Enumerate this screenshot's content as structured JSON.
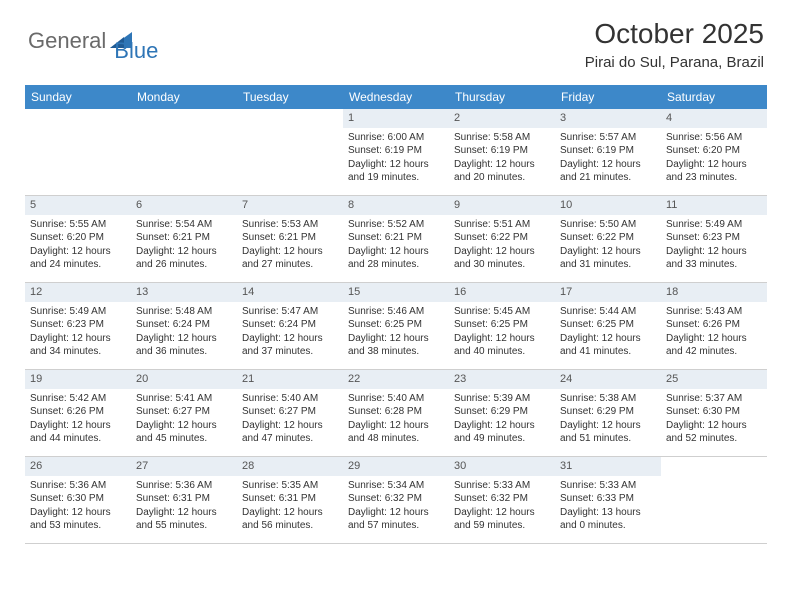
{
  "brand": {
    "part1": "General",
    "part2": "Blue"
  },
  "title": "October 2025",
  "location": "Pirai do Sul, Parana, Brazil",
  "day_names": [
    "Sunday",
    "Monday",
    "Tuesday",
    "Wednesday",
    "Thursday",
    "Friday",
    "Saturday"
  ],
  "colors": {
    "header_bg": "#3d88c9",
    "band_bg": "#e8eef4",
    "text": "#333333",
    "logo_gray": "#6a6a6a",
    "logo_blue": "#2e75b6"
  },
  "weeks": [
    [
      {
        "n": "",
        "sr": "",
        "ss": "",
        "dl": ""
      },
      {
        "n": "",
        "sr": "",
        "ss": "",
        "dl": ""
      },
      {
        "n": "",
        "sr": "",
        "ss": "",
        "dl": ""
      },
      {
        "n": "1",
        "sr": "Sunrise: 6:00 AM",
        "ss": "Sunset: 6:19 PM",
        "dl": "Daylight: 12 hours and 19 minutes."
      },
      {
        "n": "2",
        "sr": "Sunrise: 5:58 AM",
        "ss": "Sunset: 6:19 PM",
        "dl": "Daylight: 12 hours and 20 minutes."
      },
      {
        "n": "3",
        "sr": "Sunrise: 5:57 AM",
        "ss": "Sunset: 6:19 PM",
        "dl": "Daylight: 12 hours and 21 minutes."
      },
      {
        "n": "4",
        "sr": "Sunrise: 5:56 AM",
        "ss": "Sunset: 6:20 PM",
        "dl": "Daylight: 12 hours and 23 minutes."
      }
    ],
    [
      {
        "n": "5",
        "sr": "Sunrise: 5:55 AM",
        "ss": "Sunset: 6:20 PM",
        "dl": "Daylight: 12 hours and 24 minutes."
      },
      {
        "n": "6",
        "sr": "Sunrise: 5:54 AM",
        "ss": "Sunset: 6:21 PM",
        "dl": "Daylight: 12 hours and 26 minutes."
      },
      {
        "n": "7",
        "sr": "Sunrise: 5:53 AM",
        "ss": "Sunset: 6:21 PM",
        "dl": "Daylight: 12 hours and 27 minutes."
      },
      {
        "n": "8",
        "sr": "Sunrise: 5:52 AM",
        "ss": "Sunset: 6:21 PM",
        "dl": "Daylight: 12 hours and 28 minutes."
      },
      {
        "n": "9",
        "sr": "Sunrise: 5:51 AM",
        "ss": "Sunset: 6:22 PM",
        "dl": "Daylight: 12 hours and 30 minutes."
      },
      {
        "n": "10",
        "sr": "Sunrise: 5:50 AM",
        "ss": "Sunset: 6:22 PM",
        "dl": "Daylight: 12 hours and 31 minutes."
      },
      {
        "n": "11",
        "sr": "Sunrise: 5:49 AM",
        "ss": "Sunset: 6:23 PM",
        "dl": "Daylight: 12 hours and 33 minutes."
      }
    ],
    [
      {
        "n": "12",
        "sr": "Sunrise: 5:49 AM",
        "ss": "Sunset: 6:23 PM",
        "dl": "Daylight: 12 hours and 34 minutes."
      },
      {
        "n": "13",
        "sr": "Sunrise: 5:48 AM",
        "ss": "Sunset: 6:24 PM",
        "dl": "Daylight: 12 hours and 36 minutes."
      },
      {
        "n": "14",
        "sr": "Sunrise: 5:47 AM",
        "ss": "Sunset: 6:24 PM",
        "dl": "Daylight: 12 hours and 37 minutes."
      },
      {
        "n": "15",
        "sr": "Sunrise: 5:46 AM",
        "ss": "Sunset: 6:25 PM",
        "dl": "Daylight: 12 hours and 38 minutes."
      },
      {
        "n": "16",
        "sr": "Sunrise: 5:45 AM",
        "ss": "Sunset: 6:25 PM",
        "dl": "Daylight: 12 hours and 40 minutes."
      },
      {
        "n": "17",
        "sr": "Sunrise: 5:44 AM",
        "ss": "Sunset: 6:25 PM",
        "dl": "Daylight: 12 hours and 41 minutes."
      },
      {
        "n": "18",
        "sr": "Sunrise: 5:43 AM",
        "ss": "Sunset: 6:26 PM",
        "dl": "Daylight: 12 hours and 42 minutes."
      }
    ],
    [
      {
        "n": "19",
        "sr": "Sunrise: 5:42 AM",
        "ss": "Sunset: 6:26 PM",
        "dl": "Daylight: 12 hours and 44 minutes."
      },
      {
        "n": "20",
        "sr": "Sunrise: 5:41 AM",
        "ss": "Sunset: 6:27 PM",
        "dl": "Daylight: 12 hours and 45 minutes."
      },
      {
        "n": "21",
        "sr": "Sunrise: 5:40 AM",
        "ss": "Sunset: 6:27 PM",
        "dl": "Daylight: 12 hours and 47 minutes."
      },
      {
        "n": "22",
        "sr": "Sunrise: 5:40 AM",
        "ss": "Sunset: 6:28 PM",
        "dl": "Daylight: 12 hours and 48 minutes."
      },
      {
        "n": "23",
        "sr": "Sunrise: 5:39 AM",
        "ss": "Sunset: 6:29 PM",
        "dl": "Daylight: 12 hours and 49 minutes."
      },
      {
        "n": "24",
        "sr": "Sunrise: 5:38 AM",
        "ss": "Sunset: 6:29 PM",
        "dl": "Daylight: 12 hours and 51 minutes."
      },
      {
        "n": "25",
        "sr": "Sunrise: 5:37 AM",
        "ss": "Sunset: 6:30 PM",
        "dl": "Daylight: 12 hours and 52 minutes."
      }
    ],
    [
      {
        "n": "26",
        "sr": "Sunrise: 5:36 AM",
        "ss": "Sunset: 6:30 PM",
        "dl": "Daylight: 12 hours and 53 minutes."
      },
      {
        "n": "27",
        "sr": "Sunrise: 5:36 AM",
        "ss": "Sunset: 6:31 PM",
        "dl": "Daylight: 12 hours and 55 minutes."
      },
      {
        "n": "28",
        "sr": "Sunrise: 5:35 AM",
        "ss": "Sunset: 6:31 PM",
        "dl": "Daylight: 12 hours and 56 minutes."
      },
      {
        "n": "29",
        "sr": "Sunrise: 5:34 AM",
        "ss": "Sunset: 6:32 PM",
        "dl": "Daylight: 12 hours and 57 minutes."
      },
      {
        "n": "30",
        "sr": "Sunrise: 5:33 AM",
        "ss": "Sunset: 6:32 PM",
        "dl": "Daylight: 12 hours and 59 minutes."
      },
      {
        "n": "31",
        "sr": "Sunrise: 5:33 AM",
        "ss": "Sunset: 6:33 PM",
        "dl": "Daylight: 13 hours and 0 minutes."
      },
      {
        "n": "",
        "sr": "",
        "ss": "",
        "dl": ""
      }
    ]
  ]
}
